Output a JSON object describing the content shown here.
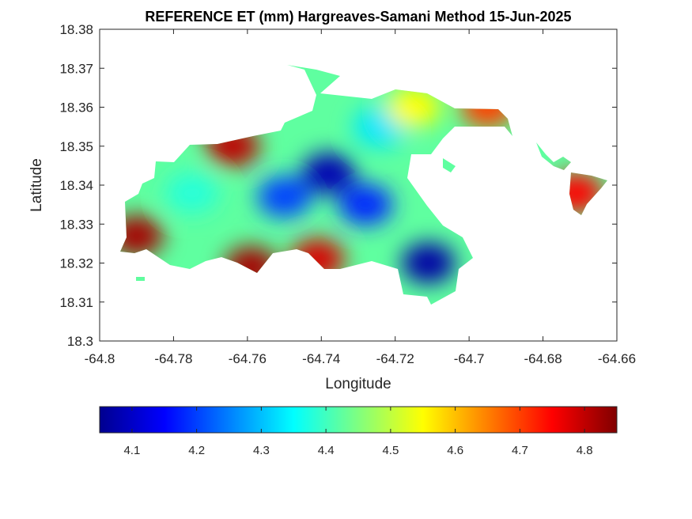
{
  "chart_data": {
    "type": "heatmap",
    "title": "REFERENCE ET (mm) Hargreaves-Samani Method  15-Jun-2025",
    "xlabel": "Longitude",
    "ylabel": "Latitude",
    "xlim": [
      -64.8,
      -64.66
    ],
    "ylim": [
      18.3,
      18.38
    ],
    "x_ticks": [
      "-64.8",
      "-64.78",
      "-64.76",
      "-64.74",
      "-64.72",
      "-64.7",
      "-64.68",
      "-64.66"
    ],
    "y_ticks": [
      "18.3",
      "18.31",
      "18.32",
      "18.33",
      "18.34",
      "18.35",
      "18.36",
      "18.37",
      "18.38"
    ],
    "colormap": "jet",
    "colorbar": {
      "orientation": "horizontal",
      "placement": "below",
      "range": [
        4.05,
        4.85
      ],
      "ticks": [
        "4.1",
        "4.2",
        "4.3",
        "4.4",
        "4.5",
        "4.6",
        "4.7",
        "4.8"
      ]
    },
    "grid": false,
    "blobs": [
      {
        "lon": -64.738,
        "lat": 18.343,
        "value": 4.08
      },
      {
        "lon": -64.711,
        "lat": 18.32,
        "value": 4.07
      },
      {
        "lon": -64.75,
        "lat": 18.337,
        "value": 4.2
      },
      {
        "lon": -64.728,
        "lat": 18.335,
        "value": 4.18
      },
      {
        "lon": -64.724,
        "lat": 18.355,
        "value": 4.33
      },
      {
        "lon": -64.775,
        "lat": 18.338,
        "value": 4.38
      },
      {
        "lon": -64.79,
        "lat": 18.327,
        "value": 4.82
      },
      {
        "lon": -64.764,
        "lat": 18.35,
        "value": 4.8
      },
      {
        "lon": -64.759,
        "lat": 18.319,
        "value": 4.82
      },
      {
        "lon": -64.741,
        "lat": 18.321,
        "value": 4.78
      },
      {
        "lon": -64.715,
        "lat": 18.36,
        "value": 4.55
      },
      {
        "lon": -64.671,
        "lat": 18.338,
        "value": 4.75
      },
      {
        "lon": -64.695,
        "lat": 18.36,
        "value": 4.7
      }
    ]
  }
}
